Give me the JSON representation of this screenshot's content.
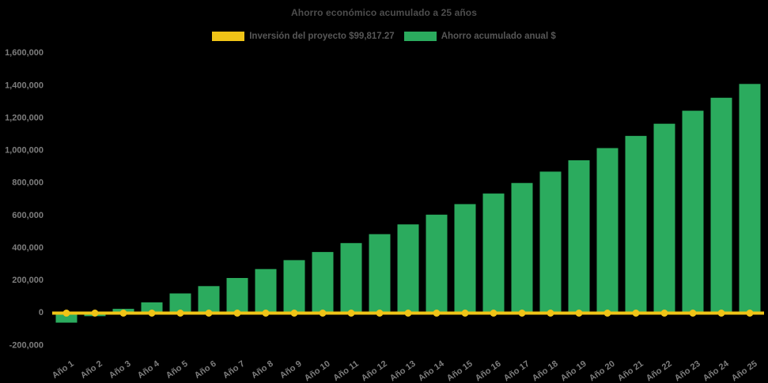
{
  "chart_data": {
    "type": "bar",
    "title": "Ahorro económico acumulado a 25 años",
    "background": "#000000",
    "legend_position": "top",
    "grid": false,
    "categories": [
      "Año 1",
      "Año 2",
      "Año 3",
      "Año 4",
      "Año 5",
      "Año 6",
      "Año 7",
      "Año 8",
      "Año 9",
      "Año 10",
      "Año 11",
      "Año 12",
      "Año 13",
      "Año 14",
      "Año 15",
      "Año 16",
      "Año 17",
      "Año 18",
      "Año 19",
      "Año 20",
      "Año 21",
      "Año 22",
      "Año 23",
      "Año 24",
      "Año 25"
    ],
    "series": [
      {
        "name": "Inversión del proyecto $99,817.27",
        "type": "line",
        "color": "#F0C417",
        "values": [
          0,
          0,
          0,
          0,
          0,
          0,
          0,
          0,
          0,
          0,
          0,
          0,
          0,
          0,
          0,
          0,
          0,
          0,
          0,
          0,
          0,
          0,
          0,
          0,
          0
        ]
      },
      {
        "name": "Ahorro acumulado anual $",
        "type": "bar",
        "color": "#2BAB5E",
        "values": [
          -65000,
          -25000,
          20000,
          60000,
          115000,
          160000,
          210000,
          265000,
          320000,
          370000,
          425000,
          480000,
          540000,
          600000,
          665000,
          730000,
          795000,
          865000,
          935000,
          1010000,
          1085000,
          1160000,
          1240000,
          1320000,
          1405000
        ]
      }
    ],
    "yaxis": {
      "min": -200000,
      "max": 1600000,
      "tick_step": 200000,
      "tick_labels": [
        "1,600,000",
        "1,400,000",
        "1,200,000",
        "1,000,000",
        "800,000",
        "600,000",
        "400,000",
        "200,000",
        "0",
        "-200,000"
      ]
    },
    "text_colors": {
      "title": "#4d4d4d",
      "legend": "#575757",
      "ticks": "#7d7d7d"
    }
  }
}
